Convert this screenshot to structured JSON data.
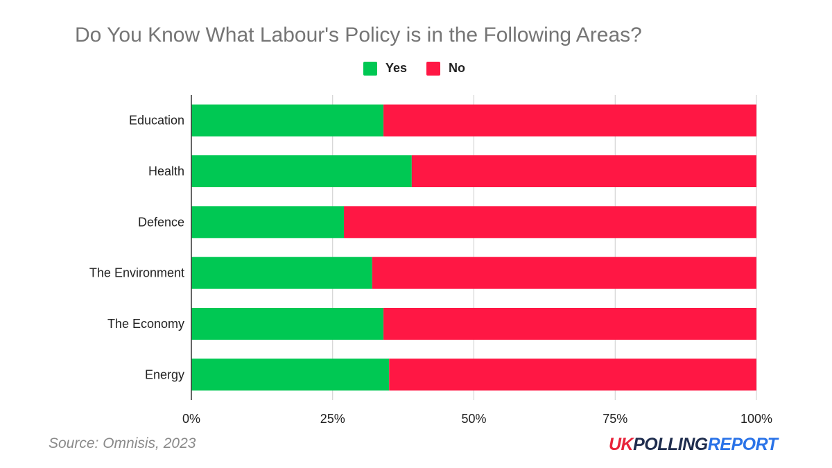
{
  "chart_data": {
    "type": "bar",
    "orientation": "horizontal",
    "stacked": true,
    "title": "Do You Know What Labour's Policy is in the Following Areas?",
    "categories": [
      "Education",
      "Health",
      "Defence",
      "The Environment",
      "The Economy",
      "Energy"
    ],
    "series": [
      {
        "name": "Yes",
        "color": "#00c853",
        "values": [
          34,
          39,
          27,
          32,
          34,
          35
        ]
      },
      {
        "name": "No",
        "color": "#ff1744",
        "values": [
          66,
          61,
          73,
          68,
          66,
          65
        ]
      }
    ],
    "xlim": [
      0,
      100
    ],
    "xticks": [
      0,
      25,
      50,
      75,
      100
    ],
    "xtick_labels": [
      "0%",
      "25%",
      "50%",
      "75%",
      "100%"
    ],
    "grid": true,
    "legend_position": "top-center"
  },
  "source": "Source: Omnisis, 2023",
  "logo": {
    "part1": "UK",
    "part2": "POLLING",
    "part3": "REPORT"
  }
}
